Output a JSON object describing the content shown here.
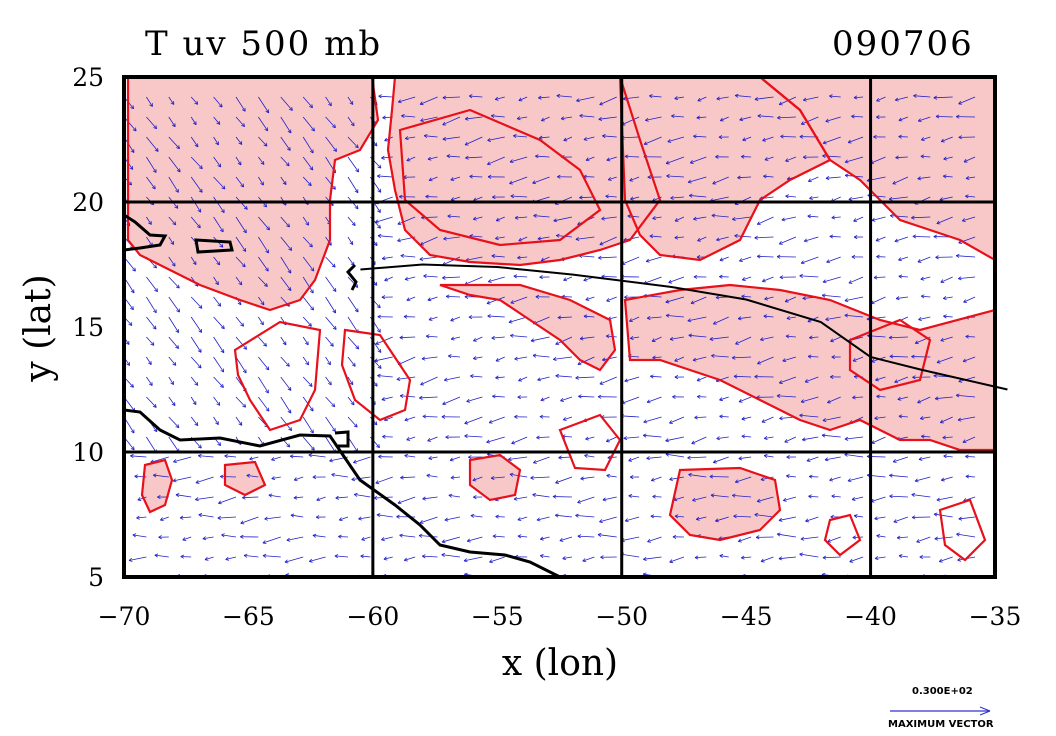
{
  "header": {
    "title": "T uv 500 mb",
    "date_code": "090706"
  },
  "reference_vector": {
    "magnitude_label": "0.300E+02",
    "caption": "MAXIMUM VECTOR",
    "color": "#3333cc"
  },
  "colors": {
    "temperature_contour": "#e8101a",
    "temperature_fill": "#f8c8c8",
    "wind_vectors": "#2020c8",
    "coastline": "#000000",
    "track": "#000000",
    "grid": "#000000"
  },
  "chart_data": {
    "type": "vector-field",
    "title": "T uv 500 mb",
    "date": "090706",
    "xlabel": "x (lon)",
    "ylabel": "y (lat)",
    "xlim": [
      -70,
      -35
    ],
    "ylim": [
      5,
      25
    ],
    "xticks": [
      -70,
      -65,
      -60,
      -55,
      -50,
      -45,
      -40,
      -35
    ],
    "yticks": [
      5,
      10,
      15,
      20,
      25
    ],
    "xtick_labels": [
      "−70",
      "−65",
      "−60",
      "−55",
      "−50",
      "−45",
      "−40",
      "−35"
    ],
    "ytick_labels": [
      "5",
      "10",
      "15",
      "20",
      "25"
    ],
    "grid_lines_lon": [
      -60,
      -50,
      -40
    ],
    "grid_lines_lat": [
      10,
      20
    ],
    "grid": true,
    "storm_track": {
      "lon": [
        -60.5,
        -58,
        -55,
        -52,
        -48,
        -45,
        -42,
        -40,
        -38,
        -34.5
      ],
      "lat": [
        17.3,
        17.5,
        17.4,
        17.1,
        16.6,
        16.1,
        15.2,
        13.8,
        13.3,
        12.5
      ]
    },
    "wind_field": {
      "description_regions": [
        {
          "lon_range": [
            -70,
            -60
          ],
          "lat_range": [
            10,
            25
          ],
          "flow": "northwesterly"
        },
        {
          "lon_range": [
            -60,
            -35
          ],
          "lat_range": [
            10,
            25
          ],
          "flow": "easterly"
        },
        {
          "lon_range": [
            -70,
            -35
          ],
          "lat_range": [
            5,
            10
          ],
          "flow": "easterly"
        }
      ]
    },
    "reference_vector": {
      "magnitude": "0.300E+02",
      "label": "MAXIMUM VECTOR"
    }
  }
}
